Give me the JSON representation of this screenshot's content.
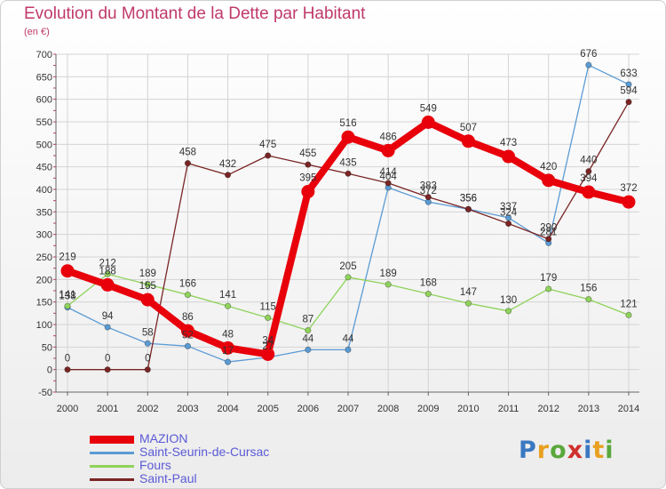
{
  "title": "Evolution du Montant de la Dette par Habitant",
  "subtitle": "(en €)",
  "logo": {
    "text": "Proxiti",
    "colors": [
      "#3a78c2",
      "#e8a020",
      "#5aa83c",
      "#d0302c",
      "#3a78c2",
      "#e8a020",
      "#5aa83c"
    ]
  },
  "chart_data": {
    "type": "line",
    "x": [
      "2000",
      "2001",
      "2002",
      "2003",
      "2004",
      "2005",
      "2006",
      "2007",
      "2008",
      "2009",
      "2010",
      "2011",
      "2012",
      "2013",
      "2014"
    ],
    "ylim": [
      -50,
      700
    ],
    "yticks": [
      -50,
      0,
      50,
      100,
      150,
      200,
      250,
      300,
      350,
      400,
      450,
      500,
      550,
      600,
      650,
      700
    ],
    "grid": true,
    "legend_position": "bottom-left",
    "series": [
      {
        "name": "MAZION",
        "color": "#e8000b",
        "values": [
          219,
          188,
          155,
          86,
          48,
          34,
          395,
          516,
          486,
          549,
          507,
          473,
          420,
          394,
          372
        ]
      },
      {
        "name": "Saint-Seurin-de-Cursac",
        "color": "#5a9bd4",
        "values": [
          138,
          94,
          58,
          52,
          17,
          27,
          44,
          44,
          404,
          372,
          356,
          337,
          281,
          676,
          633
        ]
      },
      {
        "name": "Fours",
        "color": "#8fd35a",
        "values": [
          141,
          212,
          189,
          166,
          141,
          115,
          87,
          205,
          189,
          168,
          147,
          130,
          179,
          156,
          121
        ]
      },
      {
        "name": "Saint-Paul",
        "color": "#7a2424",
        "values": [
          0,
          0,
          0,
          458,
          432,
          475,
          455,
          435,
          414,
          383,
          356,
          324,
          290,
          440,
          594
        ]
      }
    ]
  }
}
